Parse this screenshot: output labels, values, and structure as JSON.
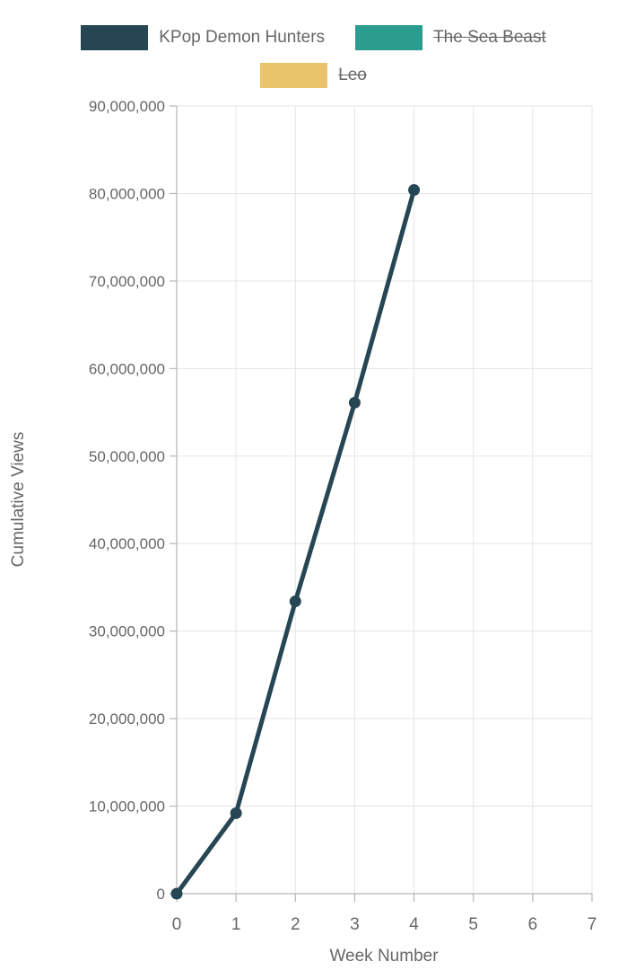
{
  "chart_data": {
    "type": "line",
    "title": "",
    "xlabel": "Week Number",
    "ylabel": "Cumulative Views",
    "x": [
      0,
      1,
      2,
      3,
      4
    ],
    "series": [
      {
        "name": "KPop Demon Hunters",
        "color": "#264653",
        "hidden": false,
        "values": [
          0,
          9200000,
          33400000,
          56100000,
          80400000
        ]
      },
      {
        "name": "The Sea Beast",
        "color": "#2a9d8f",
        "hidden": true,
        "values": []
      },
      {
        "name": "Leo",
        "color": "#e9c46a",
        "hidden": true,
        "values": []
      }
    ],
    "xlim": [
      0,
      7
    ],
    "ylim": [
      0,
      90000000
    ],
    "x_ticks": [
      0,
      1,
      2,
      3,
      4,
      5,
      6,
      7
    ],
    "x_tick_labels": [
      "0",
      "1",
      "2",
      "3",
      "4",
      "5",
      "6",
      "7"
    ],
    "y_ticks": [
      0,
      10000000,
      20000000,
      30000000,
      40000000,
      50000000,
      60000000,
      70000000,
      80000000,
      90000000
    ],
    "y_tick_labels": [
      "0",
      "10,000,000",
      "20,000,000",
      "30,000,000",
      "40,000,000",
      "50,000,000",
      "60,000,000",
      "70,000,000",
      "80,000,000",
      "90,000,000"
    ],
    "grid": true,
    "legend_position": "top",
    "colors": {
      "grid_line": "#e5e5e5",
      "axis_line": "#b5b5b5",
      "tick_mark": "#b5b5b5",
      "tick_text": "#666666",
      "legend_text": "#666666",
      "background": "#ffffff"
    }
  }
}
